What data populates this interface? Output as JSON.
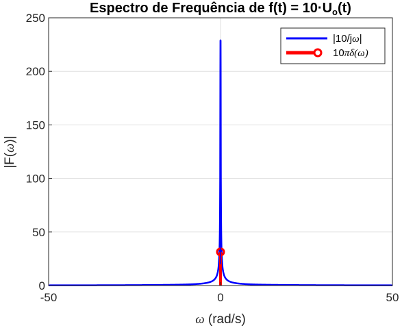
{
  "chart_data": {
    "type": "line",
    "title_main": "Espectro de Frequência de f(t) = 10·U",
    "title_sub": "o",
    "title_end": "(t)",
    "xlabel_symbol": "ω",
    "xlabel_rest": " (rad/s)",
    "ylabel_pre": "|F(",
    "ylabel_symbol": "ω",
    "ylabel_post": ")|",
    "xlim": [
      -50,
      50
    ],
    "ylim": [
      0,
      250
    ],
    "xticks": [
      -50,
      0,
      50
    ],
    "xtick_labels": [
      "-50",
      "0",
      "50"
    ],
    "yticks": [
      0,
      50,
      100,
      150,
      200,
      250
    ],
    "ytick_labels": [
      "0",
      "50",
      "100",
      "150",
      "200",
      "250"
    ],
    "grid": true,
    "legend_placement": "top-right",
    "series": [
      {
        "name_pre": "|10/j",
        "name_symbol": "ω",
        "name_post": "|",
        "color": "#0000ff",
        "formula": "10/|x|",
        "x_range": [
          -50,
          50
        ],
        "peak_value": 229
      },
      {
        "name_pre": "10",
        "name_symbol": "πδ(ω)",
        "name_post": "",
        "color": "#ff0000",
        "marker": "circle",
        "x": [
          0
        ],
        "y": [
          31.4159
        ]
      }
    ]
  }
}
